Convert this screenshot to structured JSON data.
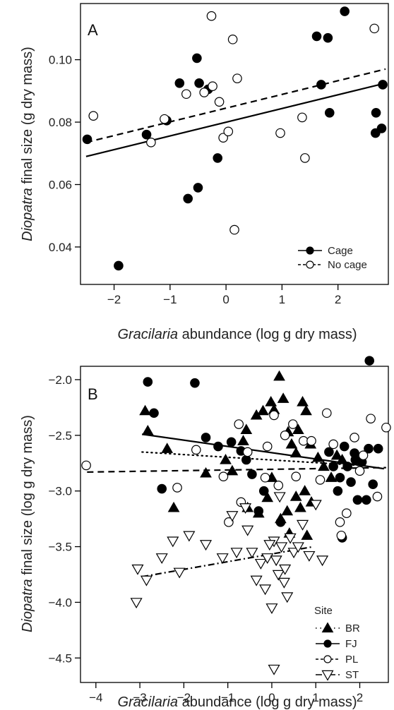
{
  "chart_data": [
    {
      "type": "scatter",
      "panel_label": "A",
      "xlabel_italic": "Gracilaria",
      "xlabel_rest": " abundance (log g dry mass)",
      "ylabel_italic": "Diopatra",
      "ylabel_rest": " final size (g dry mass)",
      "xlim": [
        -2.6,
        2.9
      ],
      "ylim": [
        0.028,
        0.118
      ],
      "xticks": [
        -2,
        -1,
        0,
        1,
        2
      ],
      "xtick_labels": [
        "−2",
        "−1",
        "0",
        "1",
        "2"
      ],
      "yticks": [
        0.04,
        0.06,
        0.08,
        0.1
      ],
      "ytick_labels": [
        "0.04",
        "0.06",
        "0.08",
        "0.10"
      ],
      "legend_placement": "bottom-right",
      "series": [
        {
          "name": "Cage",
          "marker": "filled-circle",
          "line": "solid",
          "fit": [
            [
              -2.5,
              0.069
            ],
            [
              2.85,
              0.0925
            ]
          ],
          "points": [
            [
              -2.48,
              0.0745
            ],
            [
              -1.42,
              0.076
            ],
            [
              -1.06,
              0.0805
            ],
            [
              -0.83,
              0.0925
            ],
            [
              -0.52,
              0.1005
            ],
            [
              -0.48,
              0.0925
            ],
            [
              -0.32,
              0.0905
            ],
            [
              -0.68,
              0.0555
            ],
            [
              -0.5,
              0.059
            ],
            [
              -0.15,
              0.0685
            ],
            [
              -1.92,
              0.034
            ],
            [
              1.62,
              0.1075
            ],
            [
              1.82,
              0.107
            ],
            [
              2.12,
              0.1155
            ],
            [
              1.7,
              0.092
            ],
            [
              1.85,
              0.083
            ],
            [
              2.8,
              0.092
            ],
            [
              2.68,
              0.083
            ],
            [
              2.78,
              0.078
            ],
            [
              2.67,
              0.0765
            ]
          ]
        },
        {
          "name": "No cage",
          "marker": "open-circle",
          "line": "dashed",
          "fit": [
            [
              -2.5,
              0.0735
            ],
            [
              2.85,
              0.097
            ]
          ],
          "points": [
            [
              -2.37,
              0.082
            ],
            [
              -1.34,
              0.0735
            ],
            [
              -1.1,
              0.081
            ],
            [
              -0.71,
              0.089
            ],
            [
              -0.39,
              0.0895
            ],
            [
              -0.24,
              0.0915
            ],
            [
              -0.12,
              0.0865
            ],
            [
              -0.26,
              0.114
            ],
            [
              0.12,
              0.1065
            ],
            [
              0.2,
              0.094
            ],
            [
              -0.05,
              0.075
            ],
            [
              0.04,
              0.077
            ],
            [
              0.15,
              0.0455
            ],
            [
              0.97,
              0.0765
            ],
            [
              1.36,
              0.0815
            ],
            [
              1.41,
              0.0685
            ],
            [
              2.65,
              0.11
            ]
          ]
        }
      ]
    },
    {
      "type": "scatter",
      "panel_label": "B",
      "xlabel_italic": "Gracilaria",
      "xlabel_rest": " abundance (log g dry mass)",
      "ylabel_italic": "Diopatra",
      "ylabel_rest": " final size (log g dry mass)",
      "xlim": [
        -4.35,
        2.65
      ],
      "ylim": [
        -4.72,
        -1.88
      ],
      "xticks": [
        -4,
        -3,
        -2,
        -1,
        0,
        1,
        2
      ],
      "xtick_labels": [
        "−4",
        "−3",
        "−2",
        "−1",
        "0",
        "1",
        "2"
      ],
      "yticks": [
        -4.5,
        -4.0,
        -3.5,
        -3.0,
        -2.5,
        -2.0
      ],
      "ytick_labels": [
        "−4.5",
        "−4.0",
        "−3.5",
        "−3.0",
        "−2.5",
        "−2.0"
      ],
      "legend_title": "Site",
      "legend_placement": "bottom-right",
      "series": [
        {
          "name": "BR",
          "marker": "filled-triangle",
          "line": "dotted",
          "fit": [
            [
              -2.95,
              -2.65
            ],
            [
              2.0,
              -2.77
            ]
          ],
          "points": [
            [
              -2.88,
              -2.28
            ],
            [
              -2.82,
              -2.46
            ],
            [
              -2.38,
              -2.62
            ],
            [
              -2.23,
              -3.15
            ],
            [
              -1.5,
              -2.84
            ],
            [
              -1.05,
              -2.72
            ],
            [
              -0.65,
              -2.55
            ],
            [
              -0.58,
              -2.45
            ],
            [
              -0.35,
              -2.32
            ],
            [
              -0.2,
              -2.28
            ],
            [
              -0.02,
              -2.2
            ],
            [
              0.05,
              -2.27
            ],
            [
              0.17,
              -1.97
            ],
            [
              0.26,
              -2.17
            ],
            [
              0.37,
              -2.47
            ],
            [
              0.45,
              -2.58
            ],
            [
              0.55,
              -2.66
            ],
            [
              0.6,
              -2.45
            ],
            [
              0.7,
              -2.2
            ],
            [
              0.78,
              -2.28
            ],
            [
              0.88,
              -2.58
            ],
            [
              1.05,
              -2.7
            ],
            [
              1.18,
              -2.78
            ],
            [
              1.35,
              -2.88
            ],
            [
              -0.9,
              -2.82
            ],
            [
              0.0,
              -2.88
            ],
            [
              -0.1,
              -3.06
            ],
            [
              -0.3,
              -3.2
            ],
            [
              0.2,
              -3.25
            ],
            [
              0.4,
              -3.38
            ],
            [
              0.55,
              -3.05
            ],
            [
              0.65,
              -3.15
            ],
            [
              0.75,
              -3.0
            ],
            [
              0.8,
              -3.4
            ],
            [
              0.9,
              -3.1
            ],
            [
              -0.55,
              -3.15
            ],
            [
              0.35,
              -3.18
            ],
            [
              1.48,
              -2.68
            ],
            [
              1.6,
              -2.72
            ]
          ]
        },
        {
          "name": "FJ",
          "marker": "filled-circle",
          "line": "solid",
          "fit": [
            [
              -2.95,
              -2.49
            ],
            [
              2.55,
              -2.8
            ]
          ],
          "points": [
            [
              -2.82,
              -2.02
            ],
            [
              -2.68,
              -2.3
            ],
            [
              -2.5,
              -2.98
            ],
            [
              -1.75,
              -2.03
            ],
            [
              -1.5,
              -2.52
            ],
            [
              -1.22,
              -2.6
            ],
            [
              -0.92,
              -2.56
            ],
            [
              -0.7,
              -2.64
            ],
            [
              -0.58,
              -2.72
            ],
            [
              -0.45,
              -2.85
            ],
            [
              -0.3,
              -3.18
            ],
            [
              -0.18,
              -3.0
            ],
            [
              0.2,
              -3.28
            ],
            [
              1.3,
              -2.65
            ],
            [
              1.4,
              -2.78
            ],
            [
              1.55,
              -2.88
            ],
            [
              1.6,
              -3.42
            ],
            [
              1.65,
              -2.6
            ],
            [
              1.72,
              -2.78
            ],
            [
              1.8,
              -2.92
            ],
            [
              1.88,
              -2.66
            ],
            [
              1.95,
              -3.08
            ],
            [
              2.05,
              -2.74
            ],
            [
              2.15,
              -3.08
            ],
            [
              2.2,
              -2.62
            ],
            [
              2.22,
              -1.83
            ],
            [
              2.42,
              -2.62
            ],
            [
              2.3,
              -2.94
            ],
            [
              1.5,
              -3.0
            ],
            [
              1.9,
              -2.72
            ]
          ]
        },
        {
          "name": "PL",
          "marker": "open-circle",
          "line": "dashed",
          "fit": [
            [
              -4.2,
              -2.83
            ],
            [
              2.6,
              -2.79
            ]
          ],
          "points": [
            [
              -4.22,
              -2.77
            ],
            [
              -2.15,
              -2.97
            ],
            [
              -1.72,
              -2.63
            ],
            [
              -1.1,
              -2.87
            ],
            [
              -0.75,
              -2.4
            ],
            [
              -0.7,
              -3.1
            ],
            [
              -0.55,
              -2.65
            ],
            [
              -0.15,
              -2.88
            ],
            [
              -0.1,
              -2.6
            ],
            [
              0.05,
              -2.32
            ],
            [
              0.15,
              -2.95
            ],
            [
              0.3,
              -2.5
            ],
            [
              0.48,
              -2.4
            ],
            [
              0.55,
              -2.87
            ],
            [
              0.72,
              -2.55
            ],
            [
              0.9,
              -2.55
            ],
            [
              1.1,
              -2.9
            ],
            [
              1.25,
              -2.3
            ],
            [
              1.4,
              -2.58
            ],
            [
              1.55,
              -3.28
            ],
            [
              1.58,
              -3.4
            ],
            [
              1.7,
              -3.2
            ],
            [
              1.88,
              -2.52
            ],
            [
              2.0,
              -2.82
            ],
            [
              2.08,
              -2.68
            ],
            [
              2.25,
              -2.35
            ],
            [
              2.4,
              -3.05
            ],
            [
              2.6,
              -2.43
            ],
            [
              -0.98,
              -3.28
            ]
          ]
        },
        {
          "name": "ST",
          "marker": "open-triangle-down",
          "line": "dash-dot",
          "fit": [
            [
              -2.95,
              -3.77
            ],
            [
              0.95,
              -3.5
            ]
          ],
          "points": [
            [
              -3.05,
              -3.7
            ],
            [
              -2.85,
              -3.8
            ],
            [
              -3.08,
              -4.0
            ],
            [
              -2.5,
              -3.6
            ],
            [
              -2.25,
              -3.45
            ],
            [
              -2.1,
              -3.73
            ],
            [
              -1.88,
              -3.4
            ],
            [
              -1.5,
              -3.48
            ],
            [
              -1.12,
              -3.6
            ],
            [
              -0.9,
              -3.22
            ],
            [
              -0.8,
              -3.55
            ],
            [
              -0.6,
              -3.15
            ],
            [
              -0.45,
              -3.55
            ],
            [
              -0.35,
              -3.8
            ],
            [
              -0.25,
              -3.65
            ],
            [
              -0.15,
              -3.88
            ],
            [
              -0.1,
              -3.6
            ],
            [
              0.0,
              -4.05
            ],
            [
              0.05,
              -3.45
            ],
            [
              0.1,
              -3.62
            ],
            [
              0.15,
              -3.75
            ],
            [
              0.22,
              -3.5
            ],
            [
              0.3,
              -3.7
            ],
            [
              0.35,
              -3.95
            ],
            [
              0.42,
              -3.42
            ],
            [
              0.5,
              -3.55
            ],
            [
              0.6,
              -3.5
            ],
            [
              0.7,
              -3.3
            ],
            [
              0.85,
              -3.58
            ],
            [
              1.0,
              -3.12
            ],
            [
              1.15,
              -3.62
            ],
            [
              0.05,
              -4.6
            ],
            [
              -0.55,
              -3.35
            ],
            [
              -0.05,
              -3.48
            ],
            [
              0.18,
              -3.05
            ],
            [
              0.28,
              -3.82
            ]
          ]
        }
      ]
    }
  ]
}
